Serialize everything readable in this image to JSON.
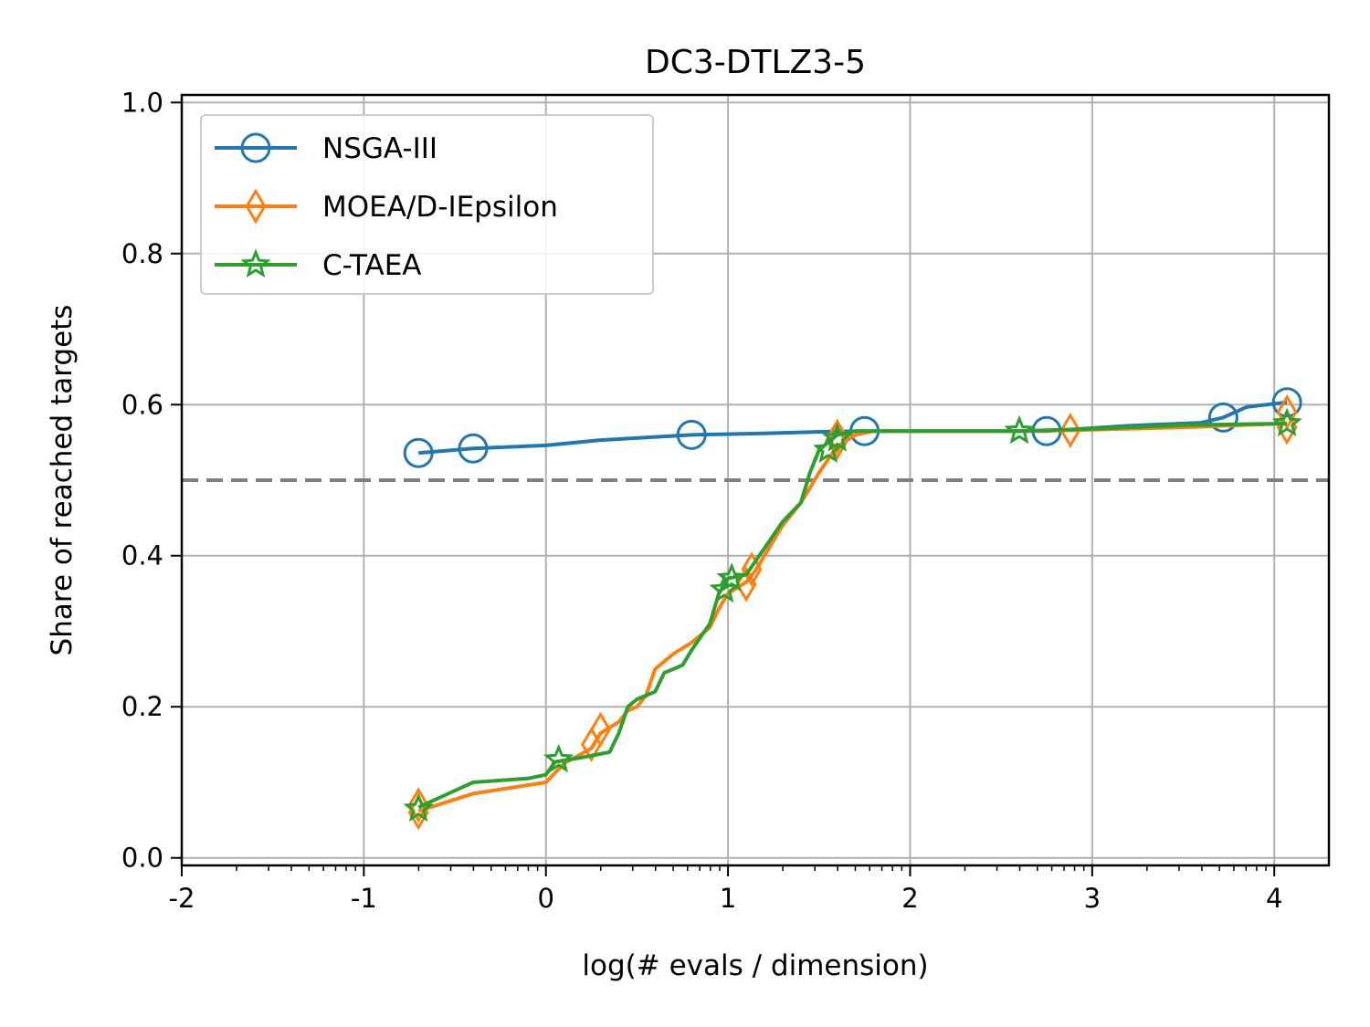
{
  "chart_data": {
    "type": "line",
    "title": "DC3-DTLZ3-5",
    "xlabel": "log(# evals / dimension)",
    "ylabel": "Share of reached targets",
    "xlim": [
      -2,
      4.3
    ],
    "ylim": [
      -0.01,
      1.01
    ],
    "xticks": [
      -2,
      -1,
      0,
      1,
      2,
      3,
      4
    ],
    "xtick_labels": [
      "-2",
      "-1",
      "0",
      "1",
      "2",
      "3",
      "4"
    ],
    "yticks": [
      0.0,
      0.2,
      0.4,
      0.6,
      0.8,
      1.0
    ],
    "ytick_labels": [
      "0.0",
      "0.2",
      "0.4",
      "0.6",
      "0.8",
      "1.0"
    ],
    "minor_xticks": "log-style between integer decades",
    "grid": true,
    "legend_position": "top-left",
    "reference_line": {
      "y": 0.5,
      "style": "dashed",
      "color": "#808080"
    },
    "series": [
      {
        "name": "NSGA-III",
        "color": "#1f77b4",
        "marker": "circle",
        "points": [
          [
            -0.7,
            0.536
          ],
          [
            -0.4,
            0.542
          ],
          [
            0.0,
            0.546
          ],
          [
            0.3,
            0.553
          ],
          [
            0.8,
            0.56
          ],
          [
            1.2,
            0.562
          ],
          [
            1.5,
            0.564
          ],
          [
            1.75,
            0.565
          ],
          [
            2.3,
            0.565
          ],
          [
            2.75,
            0.565
          ],
          [
            3.2,
            0.572
          ],
          [
            3.6,
            0.576
          ],
          [
            3.72,
            0.583
          ],
          [
            3.85,
            0.597
          ],
          [
            4.07,
            0.603
          ]
        ],
        "marker_points": [
          [
            -0.7,
            0.536
          ],
          [
            -0.4,
            0.542
          ],
          [
            0.8,
            0.56
          ],
          [
            1.75,
            0.565
          ],
          [
            2.75,
            0.565
          ],
          [
            3.72,
            0.583
          ],
          [
            4.07,
            0.603
          ]
        ]
      },
      {
        "name": "MOEA/D-IEpsilon",
        "color": "#ff7f0e",
        "marker": "diamond",
        "points": [
          [
            -0.7,
            0.062
          ],
          [
            -0.4,
            0.085
          ],
          [
            0.0,
            0.1
          ],
          [
            0.1,
            0.125
          ],
          [
            0.25,
            0.145
          ],
          [
            0.3,
            0.165
          ],
          [
            0.4,
            0.18
          ],
          [
            0.45,
            0.195
          ],
          [
            0.5,
            0.2
          ],
          [
            0.55,
            0.215
          ],
          [
            0.6,
            0.25
          ],
          [
            0.7,
            0.27
          ],
          [
            0.8,
            0.285
          ],
          [
            0.9,
            0.305
          ],
          [
            0.95,
            0.33
          ],
          [
            1.0,
            0.35
          ],
          [
            1.1,
            0.365
          ],
          [
            1.15,
            0.38
          ],
          [
            1.25,
            0.42
          ],
          [
            1.3,
            0.44
          ],
          [
            1.4,
            0.47
          ],
          [
            1.5,
            0.51
          ],
          [
            1.6,
            0.545
          ],
          [
            1.7,
            0.56
          ],
          [
            1.8,
            0.565
          ],
          [
            2.5,
            0.565
          ],
          [
            2.88,
            0.566
          ],
          [
            3.5,
            0.57
          ],
          [
            4.07,
            0.575
          ]
        ],
        "marker_points": [
          [
            -0.7,
            0.06
          ],
          [
            -0.7,
            0.07
          ],
          [
            0.3,
            0.17
          ],
          [
            0.25,
            0.15
          ],
          [
            1.1,
            0.362
          ],
          [
            1.13,
            0.382
          ],
          [
            1.6,
            0.55
          ],
          [
            1.6,
            0.558
          ],
          [
            2.88,
            0.566
          ],
          [
            4.07,
            0.57
          ],
          [
            4.07,
            0.59
          ]
        ]
      },
      {
        "name": "C-TAEA",
        "color": "#2ca02c",
        "marker": "star",
        "points": [
          [
            -0.7,
            0.067
          ],
          [
            -0.4,
            0.1
          ],
          [
            -0.1,
            0.105
          ],
          [
            0.0,
            0.11
          ],
          [
            0.05,
            0.127
          ],
          [
            0.2,
            0.133
          ],
          [
            0.35,
            0.14
          ],
          [
            0.4,
            0.165
          ],
          [
            0.45,
            0.2
          ],
          [
            0.5,
            0.21
          ],
          [
            0.6,
            0.22
          ],
          [
            0.65,
            0.245
          ],
          [
            0.75,
            0.255
          ],
          [
            0.8,
            0.275
          ],
          [
            0.9,
            0.31
          ],
          [
            0.95,
            0.35
          ],
          [
            1.0,
            0.37
          ],
          [
            1.1,
            0.375
          ],
          [
            1.2,
            0.41
          ],
          [
            1.3,
            0.445
          ],
          [
            1.4,
            0.47
          ],
          [
            1.45,
            0.51
          ],
          [
            1.5,
            0.54
          ],
          [
            1.55,
            0.55
          ],
          [
            1.6,
            0.56
          ],
          [
            1.7,
            0.565
          ],
          [
            2.6,
            0.565
          ],
          [
            3.0,
            0.568
          ],
          [
            3.5,
            0.573
          ],
          [
            4.07,
            0.575
          ]
        ],
        "marker_points": [
          [
            -0.7,
            0.065
          ],
          [
            0.07,
            0.13
          ],
          [
            0.98,
            0.355
          ],
          [
            1.02,
            0.37
          ],
          [
            1.55,
            0.54
          ],
          [
            1.6,
            0.555
          ],
          [
            2.6,
            0.565
          ],
          [
            4.07,
            0.575
          ]
        ]
      }
    ]
  }
}
